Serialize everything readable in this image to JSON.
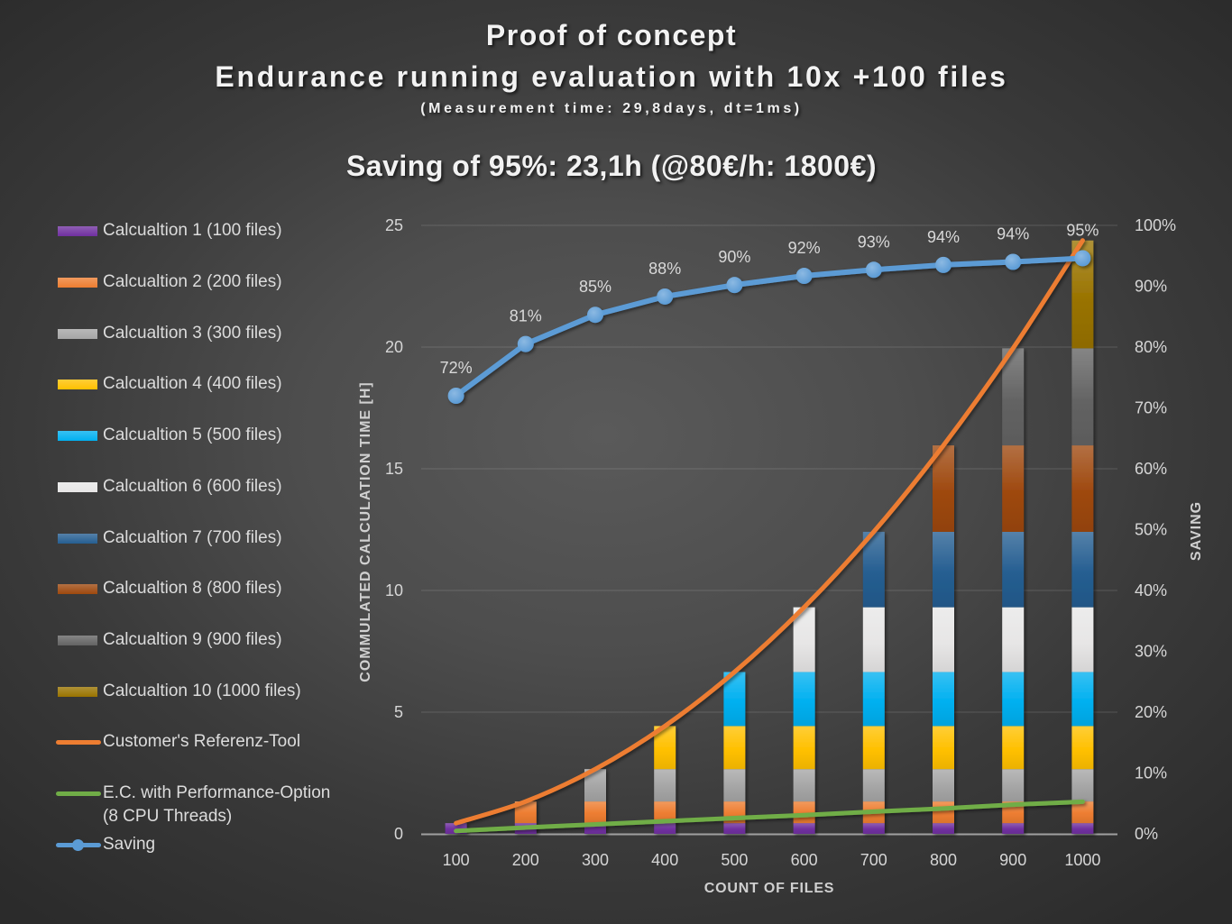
{
  "chart_data": {
    "type": "bar",
    "stacked": true,
    "title_lines": [
      "Proof of concept",
      "Endurance running evaluation with 10x +100 files"
    ],
    "subtitle": "(Measurement time: 29,8days, dt=1ms)",
    "annotation": "Saving of 95%: 23,1h (@80€/h: 1800€)",
    "xlabel": "COUNT OF FILES",
    "ylabel": "COMMULATED CALCULATION TIME [H]",
    "y2label": "SAVING",
    "categories": [
      "100",
      "200",
      "300",
      "400",
      "500",
      "600",
      "700",
      "800",
      "900",
      "1000"
    ],
    "y_axis": {
      "min": 0,
      "max": 25,
      "ticks": [
        0,
        5,
        10,
        15,
        20,
        25
      ]
    },
    "y2_axis": {
      "min": 0,
      "max": 100,
      "ticks": [
        0,
        10,
        20,
        30,
        40,
        50,
        60,
        70,
        80,
        90,
        100
      ],
      "format": "percent"
    },
    "grid": true,
    "legend_position": "left",
    "series": [
      {
        "name": "Calcualtion 1 (100 files)",
        "color": "#7030A0",
        "values": [
          0.44,
          0.44,
          0.44,
          0.44,
          0.44,
          0.44,
          0.44,
          0.44,
          0.44,
          0.44
        ]
      },
      {
        "name": "Calcualtion 2 (200 files)",
        "color": "#ED7D31",
        "values": [
          0,
          0.89,
          0.89,
          0.89,
          0.89,
          0.89,
          0.89,
          0.89,
          0.89,
          0.89
        ]
      },
      {
        "name": "Calcualtion 3 (300 files)",
        "color": "#A5A5A5",
        "values": [
          0,
          0,
          1.33,
          1.33,
          1.33,
          1.33,
          1.33,
          1.33,
          1.33,
          1.33
        ]
      },
      {
        "name": "Calcualtion 4 (400 files)",
        "color": "#FFC000",
        "values": [
          0,
          0,
          0,
          1.77,
          1.77,
          1.77,
          1.77,
          1.77,
          1.77,
          1.77
        ]
      },
      {
        "name": "Calcualtion 5 (500 files)",
        "color": "#00B0F0",
        "values": [
          0,
          0,
          0,
          0,
          2.22,
          2.22,
          2.22,
          2.22,
          2.22,
          2.22
        ]
      },
      {
        "name": "Calcualtion 6 (600 files)",
        "color": "#E7E6E6",
        "values": [
          0,
          0,
          0,
          0,
          0,
          2.66,
          2.66,
          2.66,
          2.66,
          2.66
        ]
      },
      {
        "name": "Calcualtion 7 (700 files)",
        "color": "#255E91",
        "values": [
          0,
          0,
          0,
          0,
          0,
          0,
          3.1,
          3.1,
          3.1,
          3.1
        ]
      },
      {
        "name": "Calcualtion 8 (800 files)",
        "color": "#9E480E",
        "values": [
          0,
          0,
          0,
          0,
          0,
          0,
          0,
          3.55,
          3.55,
          3.55
        ]
      },
      {
        "name": "Calcualtion 9 (900 files)",
        "color": "#636363",
        "values": [
          0,
          0,
          0,
          0,
          0,
          0,
          0,
          0,
          3.99,
          3.99
        ]
      },
      {
        "name": "Calcualtion 10 (1000 files)",
        "color": "#997300",
        "values": [
          0,
          0,
          0,
          0,
          0,
          0,
          0,
          0,
          0,
          4.43
        ]
      }
    ],
    "lines": [
      {
        "name": "Customer's Referenz-Tool",
        "color": "#ED7D31",
        "axis": "left",
        "smooth": true,
        "values": [
          0.44,
          1.33,
          2.66,
          4.43,
          6.65,
          9.31,
          12.41,
          15.96,
          19.95,
          24.38
        ]
      },
      {
        "name": "E.C. with Performance-Option\n(8 CPU Threads)",
        "color": "#70AD47",
        "axis": "left",
        "smooth": false,
        "values": [
          0.12,
          0.26,
          0.39,
          0.52,
          0.65,
          0.77,
          0.91,
          1.04,
          1.2,
          1.32
        ]
      },
      {
        "name": "Saving",
        "color": "#5B9BD5",
        "axis": "right",
        "marker": true,
        "smooth": false,
        "values": [
          72.0,
          80.5,
          85.3,
          88.3,
          90.2,
          91.7,
          92.7,
          93.5,
          94.0,
          94.6
        ],
        "labels": [
          "72%",
          "81%",
          "85%",
          "88%",
          "90%",
          "92%",
          "93%",
          "94%",
          "94%",
          "95%"
        ]
      }
    ]
  }
}
